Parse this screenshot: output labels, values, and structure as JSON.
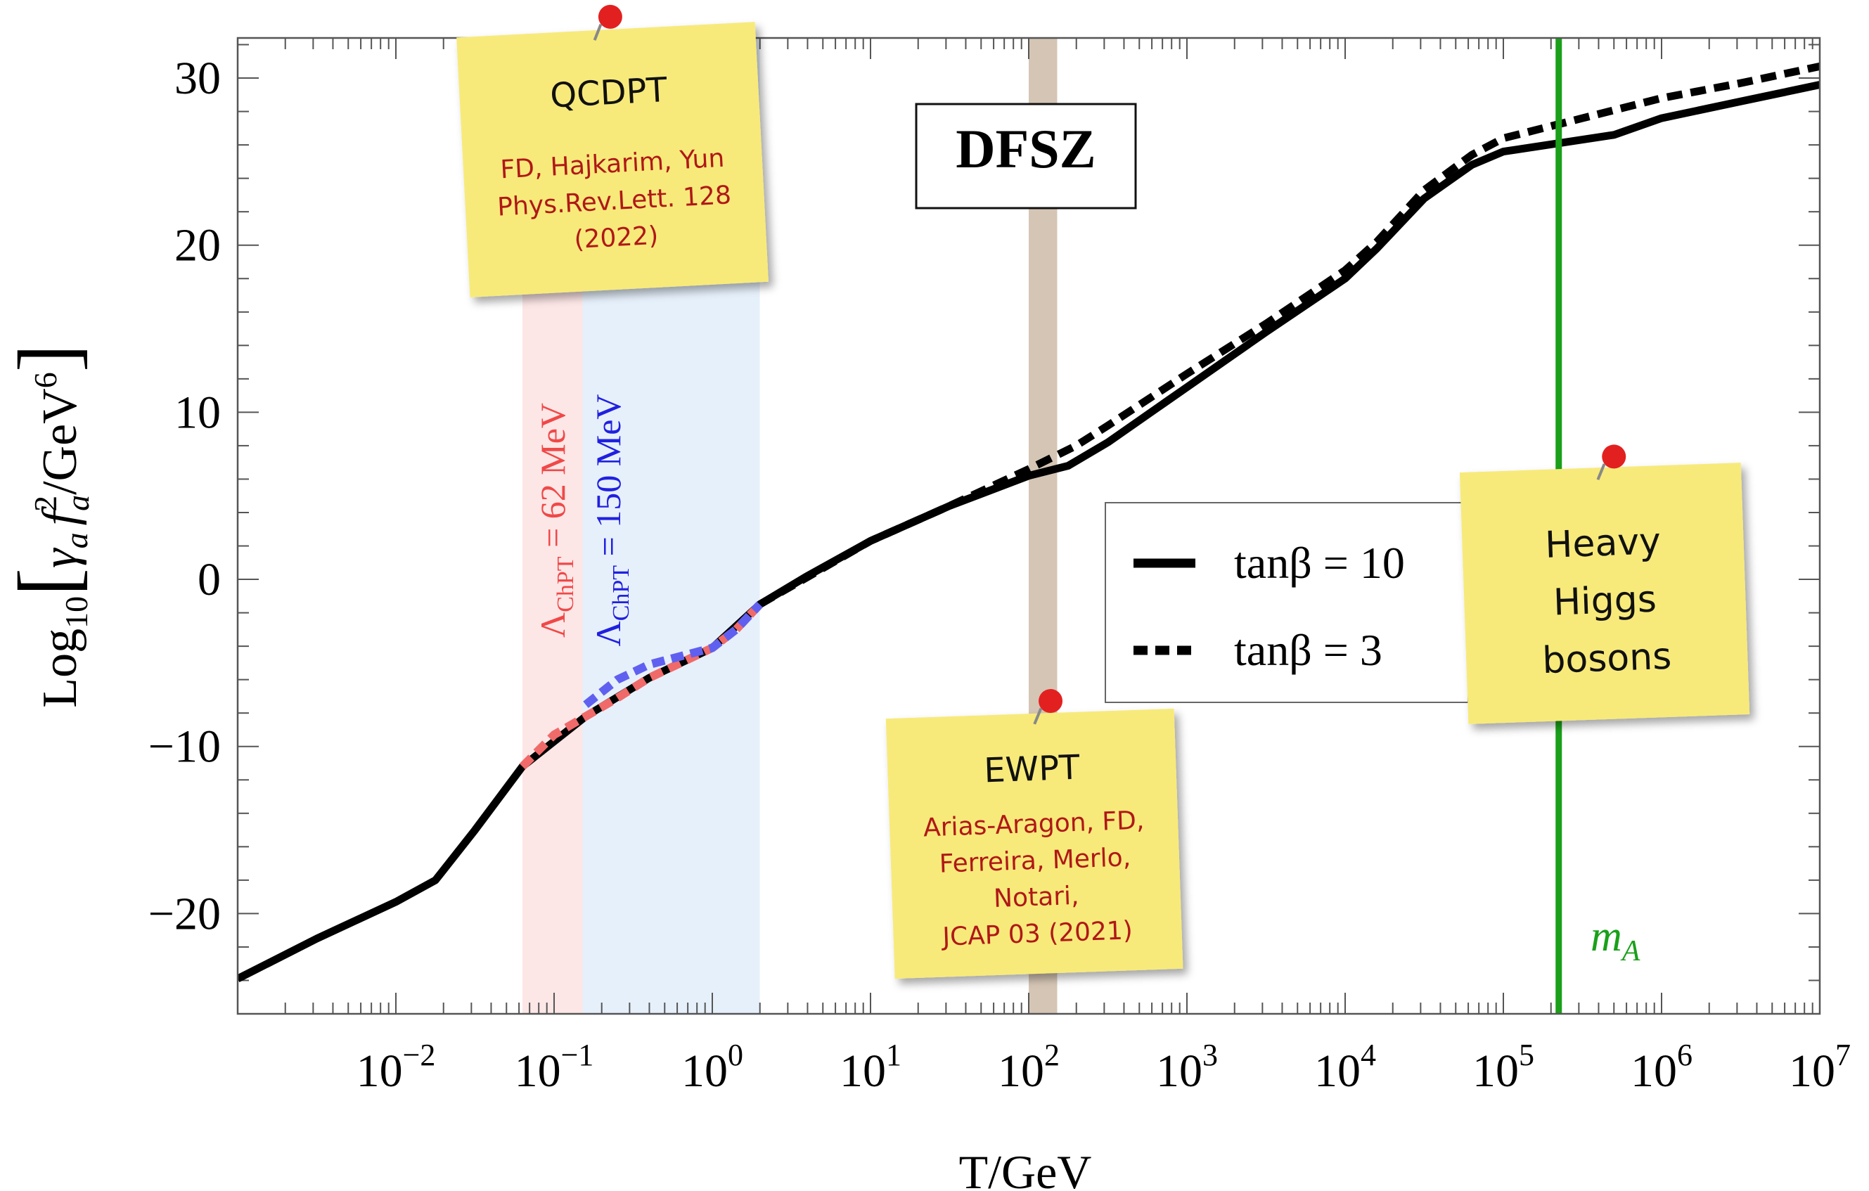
{
  "chart_data": {
    "type": "line",
    "title": "DFSZ",
    "xlabel": "T/GeV",
    "ylabel_parts": {
      "log": "Log",
      "log_sub": "10",
      "gamma": "γ",
      "gamma_sub": "a",
      "f": "f",
      "f_sup": "2",
      "f_sub": "a",
      "unit": "/GeV",
      "unit_sup": "6"
    },
    "x_scale": "log10",
    "xlim_log10": [
      -3.0,
      7.0
    ],
    "ylim": [
      -26,
      32.4
    ],
    "x_ticks": [
      {
        "base": "10",
        "exp": "−2"
      },
      {
        "base": "10",
        "exp": "−1"
      },
      {
        "base": "10",
        "exp": "0"
      },
      {
        "base": "10",
        "exp": "1"
      },
      {
        "base": "10",
        "exp": "2"
      },
      {
        "base": "10",
        "exp": "3"
      },
      {
        "base": "10",
        "exp": "4"
      },
      {
        "base": "10",
        "exp": "5"
      },
      {
        "base": "10",
        "exp": "6"
      },
      {
        "base": "10",
        "exp": "7"
      }
    ],
    "y_ticks": [
      "30",
      "20",
      "10",
      "0",
      "−10",
      "−20"
    ],
    "y_tick_values": [
      30,
      20,
      10,
      0,
      -10,
      -20
    ],
    "series": [
      {
        "name": "tanβ = 10",
        "style": "solid",
        "color": "#000000",
        "points_log10T": [
          [
            -3.0,
            -23.9
          ],
          [
            -2.5,
            -21.5
          ],
          [
            -2.0,
            -19.3
          ],
          [
            -1.75,
            -18.0
          ],
          [
            -1.5,
            -15.0
          ],
          [
            -1.2,
            -11.2
          ],
          [
            -0.8,
            -8.2
          ],
          [
            -0.4,
            -5.9
          ],
          [
            0.0,
            -4.1
          ],
          [
            0.3,
            -1.5
          ],
          [
            0.6,
            0.2
          ],
          [
            1.0,
            2.3
          ],
          [
            1.5,
            4.4
          ],
          [
            2.0,
            6.2
          ],
          [
            2.25,
            6.8
          ],
          [
            2.5,
            8.2
          ],
          [
            3.0,
            11.5
          ],
          [
            3.5,
            14.8
          ],
          [
            4.0,
            18.0
          ],
          [
            4.2,
            19.8
          ],
          [
            4.5,
            22.8
          ],
          [
            4.8,
            24.8
          ],
          [
            5.0,
            25.6
          ],
          [
            5.35,
            26.1
          ],
          [
            5.7,
            26.6
          ],
          [
            6.0,
            27.6
          ],
          [
            6.5,
            28.6
          ],
          [
            7.0,
            29.6
          ]
        ]
      },
      {
        "name": "tanβ = 3",
        "style": "dashed",
        "color": "#000000",
        "points_log10T": [
          [
            0.3,
            -1.5
          ],
          [
            1.0,
            2.3
          ],
          [
            1.5,
            4.4
          ],
          [
            2.0,
            6.6
          ],
          [
            2.3,
            8.0
          ],
          [
            2.5,
            9.2
          ],
          [
            3.0,
            12.3
          ],
          [
            3.5,
            15.3
          ],
          [
            4.0,
            18.5
          ],
          [
            4.2,
            20.2
          ],
          [
            4.5,
            23.3
          ],
          [
            4.8,
            25.4
          ],
          [
            5.0,
            26.4
          ],
          [
            5.5,
            27.6
          ],
          [
            6.0,
            28.8
          ],
          [
            6.5,
            29.7
          ],
          [
            7.0,
            30.7
          ]
        ]
      },
      {
        "name": "Λ_ChPT = 62 MeV",
        "style": "dashed",
        "color": "#f06a6a",
        "points_log10T": [
          [
            -1.2,
            -11.2
          ],
          [
            -1.0,
            -9.3
          ],
          [
            -0.8,
            -8.2
          ],
          [
            -0.6,
            -7.1
          ],
          [
            -0.4,
            -5.9
          ],
          [
            -0.2,
            -5.0
          ],
          [
            0.0,
            -4.1
          ],
          [
            0.15,
            -3.0
          ],
          [
            0.3,
            -1.5
          ]
        ]
      },
      {
        "name": "Λ_ChPT = 150 MeV",
        "style": "dashed",
        "color": "#6060f0",
        "points_log10T": [
          [
            -0.8,
            -7.5
          ],
          [
            -0.6,
            -6.0
          ],
          [
            -0.4,
            -5.1
          ],
          [
            -0.2,
            -4.6
          ],
          [
            0.0,
            -4.1
          ],
          [
            0.15,
            -3.0
          ],
          [
            0.3,
            -1.5
          ]
        ]
      }
    ],
    "bands": [
      {
        "from_log10T": -1.2,
        "to_log10T": -0.82,
        "color": "#fde6e6"
      },
      {
        "from_log10T": -0.82,
        "to_log10T": 0.3,
        "color": "#e6f0fb"
      },
      {
        "from_log10T": 2.0,
        "to_log10T": 2.18,
        "color": "#d5c5b5"
      }
    ],
    "vline": {
      "log10T": 5.35,
      "label": "m",
      "label_sub": "A",
      "color": "#1aa01a"
    },
    "legend": {
      "position": "center-right",
      "entries": [
        {
          "text": "tanβ = 10",
          "style": "solid"
        },
        {
          "text": "tanβ = 3",
          "style": "dashed"
        }
      ]
    },
    "band_labels": [
      {
        "lambda": "Λ",
        "sub": "ChPT",
        "rest": " = 62 MeV",
        "color": "#f04848"
      },
      {
        "lambda": "Λ",
        "sub": "ChPT",
        "rest": " = 150 MeV",
        "color": "#2020e0"
      }
    ],
    "notes": [
      {
        "title": "QCDPT",
        "lines": [
          "FD, Hajkarim, Yun",
          "Phys.Rev.Lett. 128",
          "(2022)"
        ]
      },
      {
        "title": "EWPT",
        "lines": [
          "Arias-Aragon, FD,",
          "Ferreira, Merlo,",
          "Notari,",
          "JCAP 03 (2021)"
        ]
      },
      {
        "title": "",
        "lines": [
          "Heavy",
          "Higgs",
          "bosons"
        ]
      }
    ],
    "colors": {
      "note_fill": "#f7ea7a",
      "note_title": "#111111",
      "note_text": "#b01818",
      "pin": "#e32020"
    }
  }
}
